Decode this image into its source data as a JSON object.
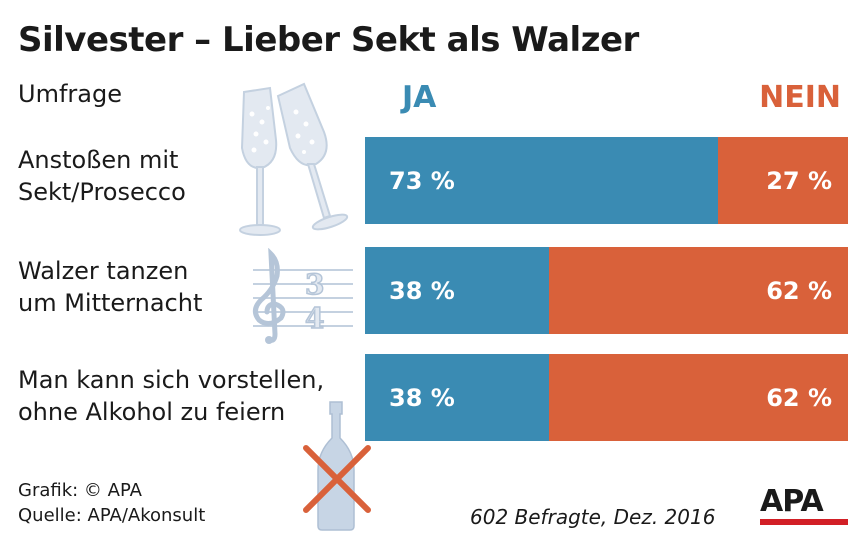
{
  "chart_data": {
    "type": "bar",
    "title": "Silvester – Lieber Sekt als Walzer",
    "subtitle": "Umfrage",
    "legend": [
      "JA",
      "NEIN"
    ],
    "categories": [
      [
        "Anstoßen mit",
        "Sekt/Prosecco"
      ],
      [
        "Walzer tanzen",
        "um Mitternacht"
      ],
      [
        "Man kann sich vorstellen,",
        "ohne Alkohol zu feiern"
      ]
    ],
    "series": [
      {
        "name": "JA",
        "values": [
          73,
          38,
          38
        ],
        "color": "#3a8bb3"
      },
      {
        "name": "NEIN",
        "values": [
          27,
          62,
          62
        ],
        "color": "#d9613a"
      }
    ],
    "value_labels": {
      "ja": [
        "73 %",
        "38 %",
        "38 %"
      ],
      "nein": [
        "27 %",
        "62 %",
        "62 %"
      ]
    },
    "stacked": true,
    "orientation": "horizontal",
    "xlim": [
      0,
      100
    ]
  },
  "footer": {
    "credit": "Grafik: © APA",
    "source": "Quelle: APA/Akonsult",
    "sample": "602 Befragte, Dez. 2016",
    "logo_text": "APA"
  },
  "icons": [
    "champagne-glasses-icon",
    "treble-clef-icon",
    "crossed-bottle-icon"
  ],
  "music_meter": {
    "top": "3",
    "bottom": "4"
  }
}
